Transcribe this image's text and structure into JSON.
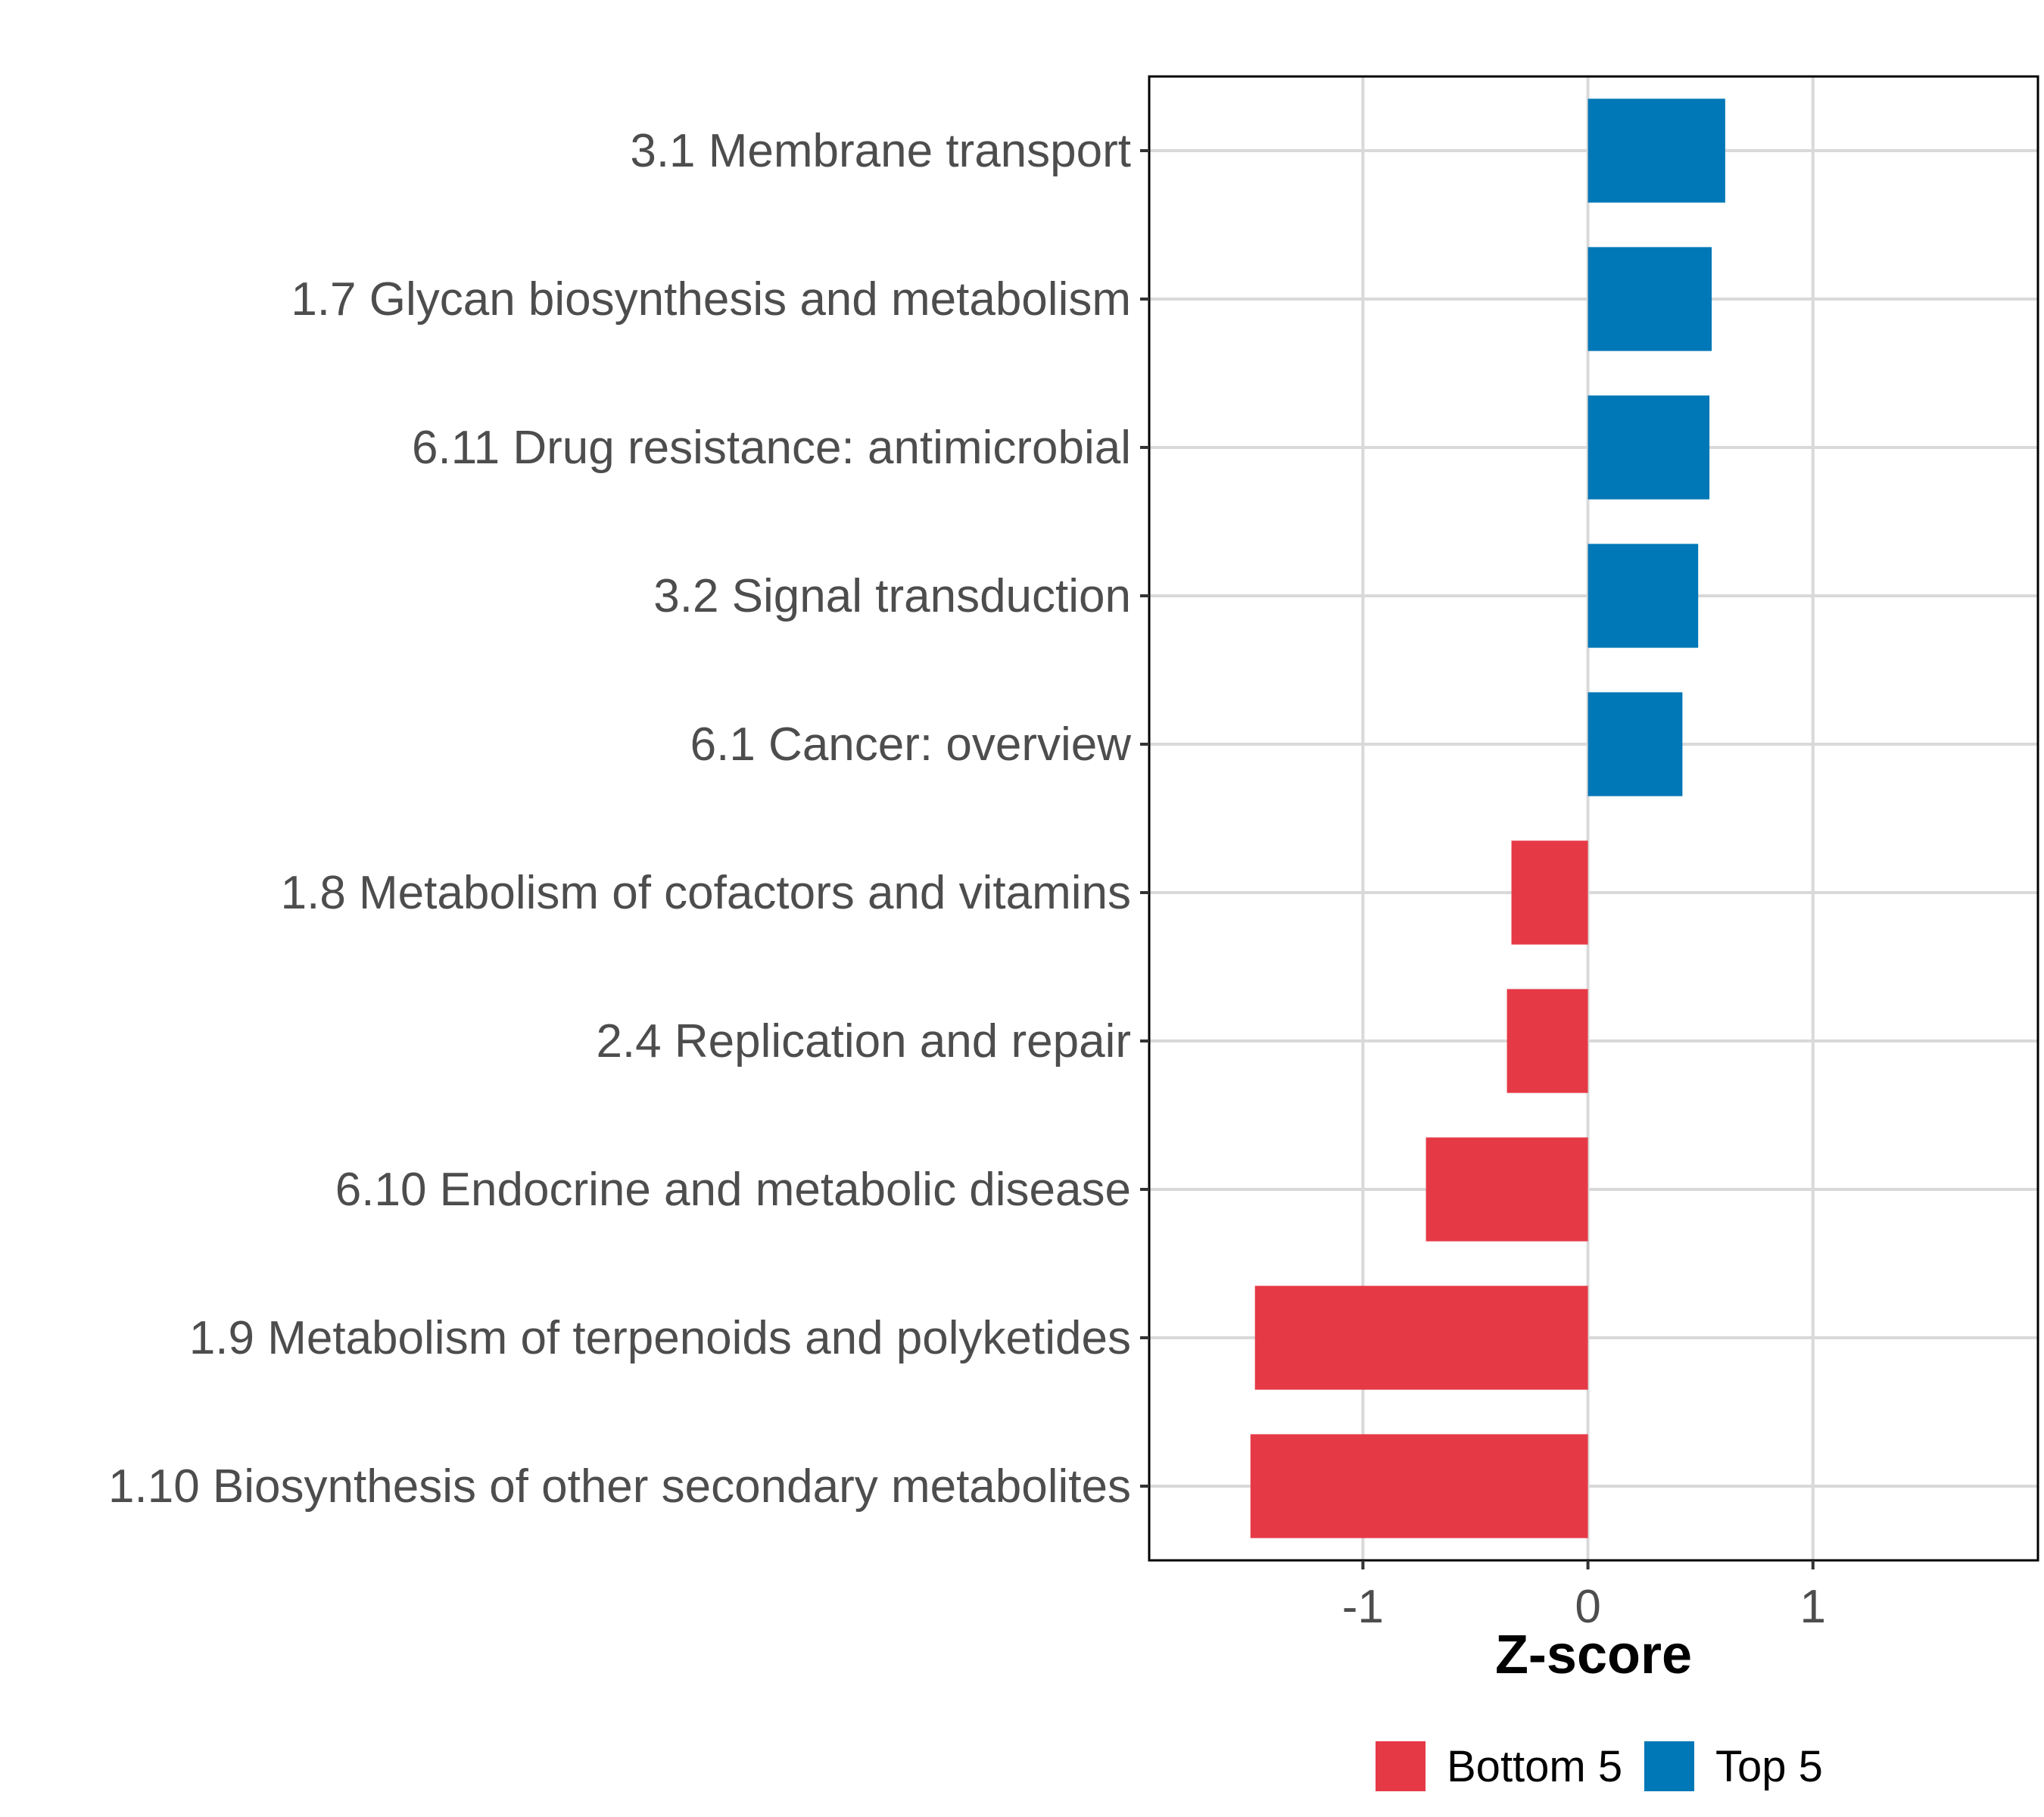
{
  "chart_data": {
    "type": "bar",
    "orientation": "horizontal",
    "xlabel": "Z-score",
    "xlim": [
      -1.95,
      2.0
    ],
    "xticks": [
      -1,
      0,
      1
    ],
    "xtick_labels": [
      "-1",
      "0",
      "1"
    ],
    "grid": true,
    "legend_position": "bottom",
    "categories": [
      "3.1 Membrane transport",
      "1.7 Glycan biosynthesis and metabolism",
      "6.11 Drug resistance: antimicrobial",
      "3.2 Signal transduction",
      "6.1 Cancer: overview",
      "1.8 Metabolism of cofactors and vitamins",
      "2.4 Replication and repair",
      "6.10 Endocrine and metabolic disease",
      "1.9 Metabolism of terpenoids and polyketides",
      "1.10 Biosynthesis of other secondary metabolites"
    ],
    "values": [
      0.61,
      0.55,
      0.54,
      0.49,
      0.42,
      -0.34,
      -0.36,
      -0.72,
      -1.48,
      -1.5
    ],
    "groups": [
      "Top 5",
      "Top 5",
      "Top 5",
      "Top 5",
      "Top 5",
      "Bottom 5",
      "Bottom 5",
      "Bottom 5",
      "Bottom 5",
      "Bottom 5"
    ],
    "legend": [
      {
        "name": "Bottom 5",
        "color": "#E63946"
      },
      {
        "name": "Top 5",
        "color": "#0077B6"
      }
    ]
  }
}
